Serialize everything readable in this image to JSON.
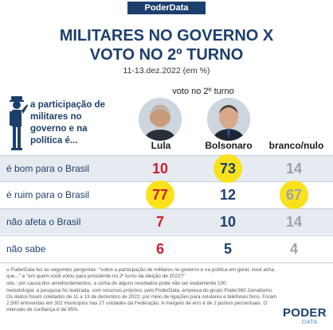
{
  "brand": "PoderData",
  "title_line1": "MILITARES NO GOVERNO X",
  "title_line2": "VOTO NO 2º TURNO",
  "subtitle": "11-13.dez.2022 (em %)",
  "vote_header": "voto no 2º turno",
  "question": "a participação de militares no governo e na política é...",
  "chart_data": {
    "type": "table",
    "columns": [
      "Lula",
      "Bolsonaro",
      "branco/nulo"
    ],
    "rows": [
      {
        "label": "é bom para o Brasil",
        "values": [
          10,
          73,
          14
        ],
        "highlight": [
          false,
          true,
          false
        ]
      },
      {
        "label": "é ruim para o Brasil",
        "values": [
          77,
          12,
          67
        ],
        "highlight": [
          true,
          false,
          true
        ]
      },
      {
        "label": "não afeta o Brasil",
        "values": [
          7,
          10,
          14
        ],
        "highlight": [
          false,
          false,
          false
        ]
      },
      {
        "label": "não sabe",
        "values": [
          6,
          5,
          4
        ],
        "highlight": [
          false,
          false,
          false
        ]
      }
    ],
    "column_colors": [
      "#cc1f2d",
      "#1d3f6e",
      "#9aa3ad"
    ],
    "highlight_color": "#f9e21b"
  },
  "footer": {
    "note": "o PoderData fez as seguintes perguntas: \"sobre a participação de militares no governo e na política em geral, você acha que...\" e \"em quem você votou para presidente no 2º turno da eleição de 2022?\"",
    "obs": "obs.: por causa dos arredondamentos, a soma de alguns resultados pode não ser exatamente 100.",
    "method": "metodologia: a pesquisa foi realizada, com recursos próprios, pelo PoderData, empresa do grupo Poder360 Jornalismo. Os dados foram coletados de 11 a 13 de dezembro de 2022, por meio de ligações para celulares e telefones fixos. Foram 2.500 entrevistas em 302 municípios nas 27 unidades da Federação. A margem de erro é de 2 pontos percentuais. O intervalo de confiança é de 95%."
  },
  "logo_main": "PODER",
  "logo_sub": "DATA"
}
